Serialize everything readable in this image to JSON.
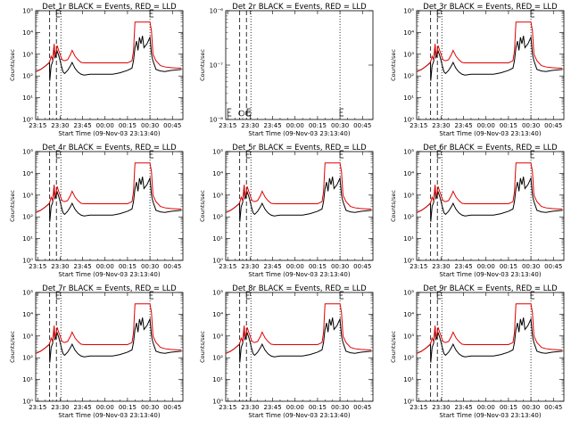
{
  "chart_data": {
    "type": "line",
    "xlabel": "Start Time (09-Nov-03 23:13:40)",
    "ylabel": "Counts/sec",
    "x_ticks": [
      "23:15",
      "23:30",
      "23:45",
      "00:00",
      "00:15",
      "00:30",
      "00:45"
    ],
    "x_tick_minutes": [
      15,
      30,
      45,
      60,
      75,
      90,
      105
    ],
    "xlim_minutes": [
      13.67,
      112
    ],
    "y_scale": "log",
    "y_tick_labels": [
      "10⁰",
      "10¹",
      "10²",
      "10³",
      "10⁴",
      "10⁵"
    ],
    "ylim": [
      1,
      100000
    ],
    "markers": {
      "dashed_minutes": [
        23,
        27.5
      ],
      "dotted_minutes": [
        30.5,
        90
      ],
      "marker_E_minute": 90
    },
    "series_colors": {
      "events": "#000000",
      "lld": "#e00000"
    },
    "panels": [
      {
        "title": "Det 1r BLACK = Events, RED = LLD",
        "empty": false,
        "lld_scale": 1.0,
        "events_scale": 1.0
      },
      {
        "title": "Det 2r BLACK = Events, RED = LLD",
        "empty": true,
        "lld_scale": 1.0,
        "events_scale": 1.0
      },
      {
        "title": "Det 3r BLACK = Events, RED = LLD",
        "empty": false,
        "lld_scale": 1.0,
        "events_scale": 1.0
      },
      {
        "title": "Det 4r BLACK = Events, RED = LLD",
        "empty": false,
        "lld_scale": 1.0,
        "events_scale": 1.0
      },
      {
        "title": "Det 5r BLACK = Events, RED = LLD",
        "empty": false,
        "lld_scale": 1.0,
        "events_scale": 1.0
      },
      {
        "title": "Det 6r BLACK = Events, RED = LLD",
        "empty": false,
        "lld_scale": 1.0,
        "events_scale": 1.0
      },
      {
        "title": "Det 7r BLACK = Events, RED = LLD",
        "empty": false,
        "lld_scale": 1.0,
        "events_scale": 1.0
      },
      {
        "title": "Det 8r BLACK = Events, RED = LLD",
        "empty": false,
        "lld_scale": 1.0,
        "events_scale": 1.0
      },
      {
        "title": "Det 9r BLACK = Events, RED = LLD",
        "empty": false,
        "lld_scale": 1.0,
        "events_scale": 1.0
      }
    ],
    "empty_panel": {
      "y_tick_labels": [
        "10⁻⁸",
        "10⁻⁷",
        "10⁻⁶"
      ],
      "ylim": [
        1e-08,
        1e-06
      ],
      "marker_minutes": [
        15,
        28,
        90
      ]
    },
    "lld_series": {
      "x": [
        14,
        17,
        20,
        22,
        23,
        24,
        25,
        26,
        26.5,
        27,
        28,
        29,
        30,
        31,
        32,
        33,
        35,
        37,
        38,
        39,
        40,
        42,
        44,
        46,
        50,
        55,
        60,
        65,
        70,
        75,
        78,
        79,
        80,
        82,
        86,
        90,
        91,
        92,
        94,
        97,
        100,
        104,
        108,
        111
      ],
      "y": [
        160,
        200,
        280,
        370,
        450,
        800,
        550,
        3000,
        900,
        1000,
        2500,
        1500,
        1000,
        600,
        520,
        500,
        560,
        1000,
        1500,
        1100,
        800,
        550,
        420,
        400,
        400,
        400,
        400,
        400,
        400,
        400,
        500,
        1400,
        30000,
        30000,
        30000,
        30000,
        12000,
        1000,
        500,
        300,
        260,
        240,
        230,
        230
      ]
    },
    "events_series": {
      "x": [
        14,
        17,
        20,
        22,
        22.9,
        23.1,
        24,
        25,
        26,
        26.5,
        27,
        28,
        29,
        30,
        31,
        32,
        33,
        35,
        37,
        38,
        39,
        40,
        42,
        44,
        46,
        50,
        55,
        60,
        65,
        70,
        75,
        78,
        79,
        80,
        81,
        82,
        83,
        84,
        85,
        86,
        88,
        90,
        91,
        92,
        94,
        97,
        100,
        104,
        108,
        111
      ],
      "y": [
        160,
        200,
        280,
        370,
        400,
        60,
        300,
        450,
        2500,
        700,
        800,
        1400,
        900,
        500,
        260,
        150,
        130,
        180,
        300,
        420,
        300,
        220,
        150,
        120,
        110,
        120,
        120,
        120,
        120,
        140,
        180,
        230,
        500,
        2000,
        4000,
        1500,
        6000,
        3000,
        7000,
        2000,
        3000,
        6000,
        1000,
        500,
        200,
        170,
        160,
        180,
        190,
        200
      ]
    }
  }
}
